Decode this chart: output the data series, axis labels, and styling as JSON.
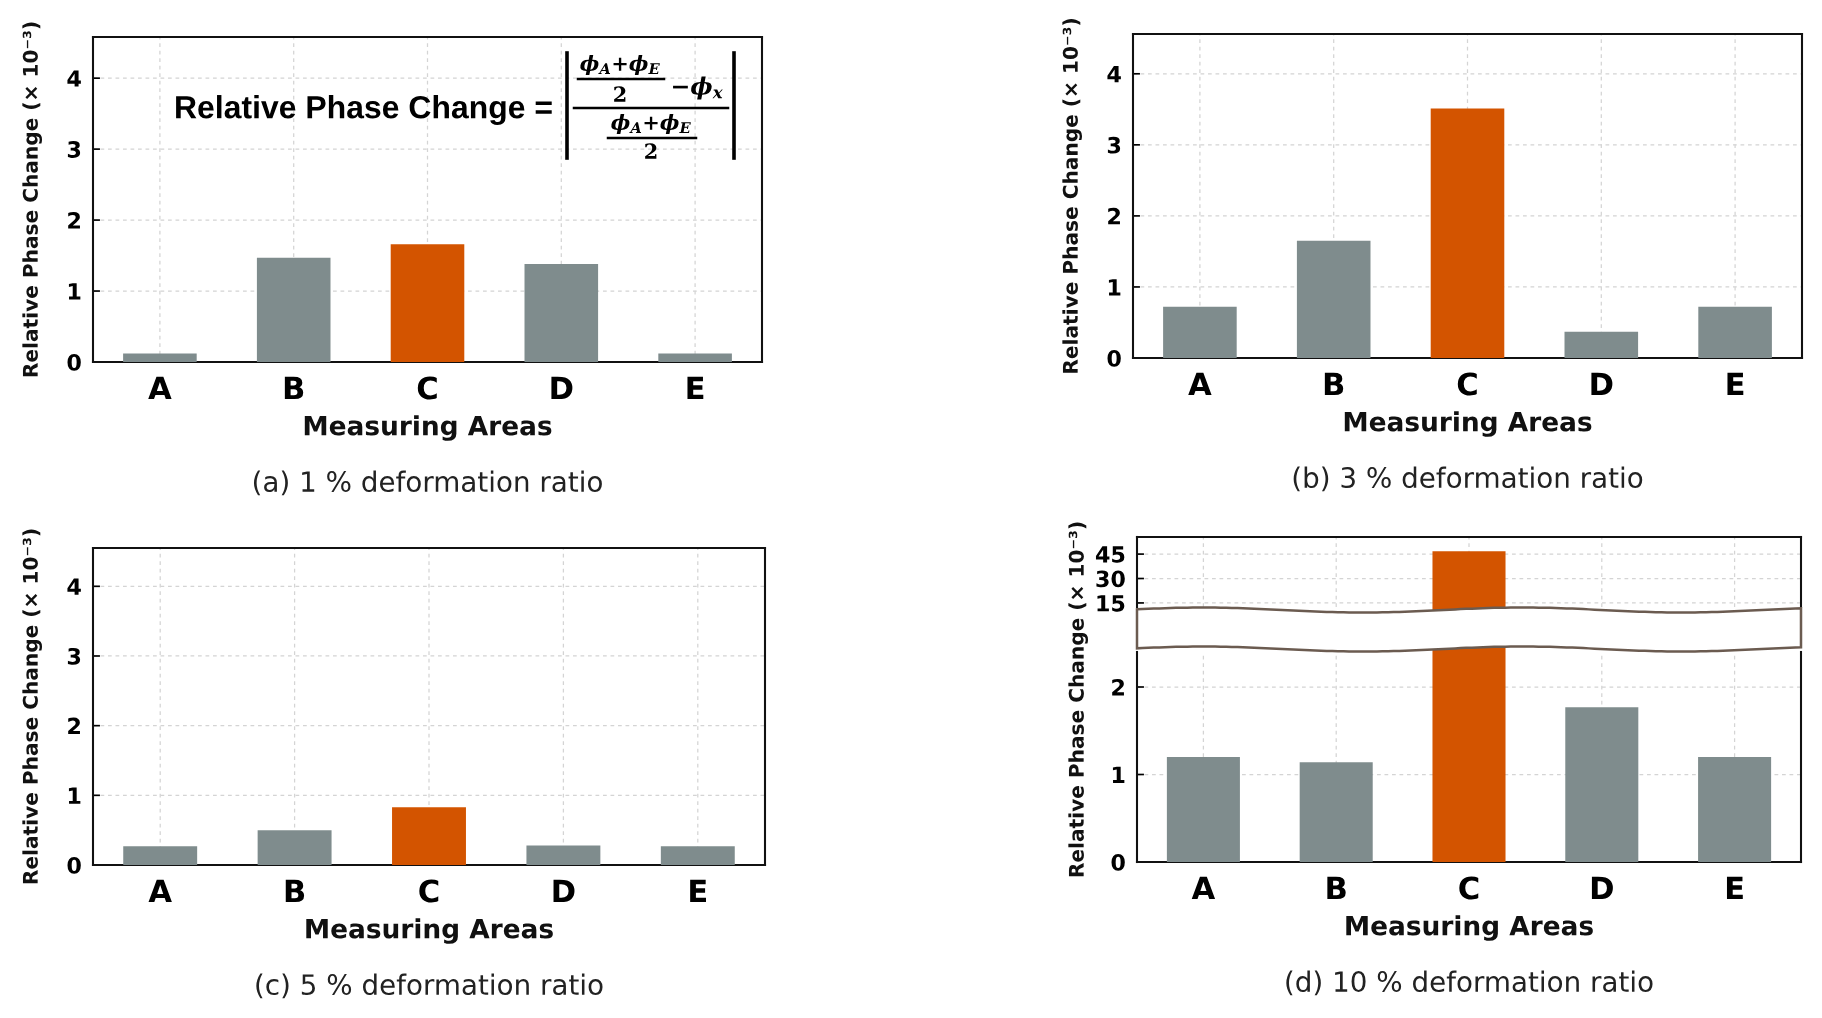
{
  "chart_data": [
    {
      "type": "bar",
      "title": "(a) 1 % deformation ratio",
      "xlabel": "Measuring Areas",
      "ylabel": "Relative Phase Change (× 10⁻³)",
      "categories": [
        "A",
        "B",
        "C",
        "D",
        "E"
      ],
      "values": [
        0.12,
        1.47,
        1.66,
        1.38,
        0.12
      ],
      "colors": [
        "#7f8c8d",
        "#7f8c8d",
        "#d35400",
        "#7f8c8d",
        "#7f8c8d"
      ],
      "ylim": [
        0,
        4.58
      ],
      "yticks": [
        0,
        1,
        2,
        3,
        4
      ],
      "grid": true,
      "annotations": [
        "Relative Phase Change =",
        "ϕ$_{A}$+ϕ$_{E}$",
        "2",
        "−ϕ$_{x}$",
        "ϕ$_{A}$+ϕ$_{E}$",
        "2"
      ]
    },
    {
      "type": "bar",
      "title": "(b) 3 % deformation ratio",
      "xlabel": "Measuring Areas",
      "ylabel": "Relative Phase Change (× 10⁻³)",
      "categories": [
        "A",
        "B",
        "C",
        "D",
        "E"
      ],
      "values": [
        0.72,
        1.65,
        3.51,
        0.37,
        0.72
      ],
      "colors": [
        "#7f8c8d",
        "#7f8c8d",
        "#d35400",
        "#7f8c8d",
        "#7f8c8d"
      ],
      "ylim": [
        0,
        4.56
      ],
      "yticks": [
        0,
        1,
        2,
        3,
        4
      ],
      "grid": true
    },
    {
      "type": "bar",
      "title": "(c) 5 % deformation ratio",
      "xlabel": "Measuring Areas",
      "ylabel": "Relative Phase Change (× 10⁻³)",
      "categories": [
        "A",
        "B",
        "C",
        "D",
        "E"
      ],
      "values": [
        0.27,
        0.5,
        0.83,
        0.28,
        0.27
      ],
      "colors": [
        "#7f8c8d",
        "#7f8c8d",
        "#d35400",
        "#7f8c8d",
        "#7f8c8d"
      ],
      "ylim": [
        0,
        4.55
      ],
      "yticks": [
        0,
        1,
        2,
        3,
        4
      ],
      "grid": true
    },
    {
      "type": "bar",
      "categories": [
        null,
        null,
        null,
        null,
        null
      ],
      "values": [
        null,
        null,
        46.8,
        null,
        null
      ],
      "colors": [
        "#7f8c8d",
        "#7f8c8d",
        "#d35400",
        "#7f8c8d",
        "#7f8c8d"
      ],
      "ylim": [
        12.5,
        55.5
      ],
      "yticks": [
        15,
        30,
        45
      ],
      "grid": true,
      "tick_labels": "y"
    },
    {
      "type": "bar",
      "title": "(d) 10 % deformation ratio",
      "xlabel": "Measuring Areas",
      "ylabel": "Relative Phase Change (× 10⁻³)",
      "categories": [
        "A",
        "B",
        "C",
        "D",
        "E"
      ],
      "values": [
        1.2,
        1.14,
        null,
        1.77,
        1.2
      ],
      "colors": [
        "#7f8c8d",
        "#7f8c8d",
        "#d35400",
        "#7f8c8d",
        "#7f8c8d"
      ],
      "ylim": [
        0,
        2.4
      ],
      "yticks": [
        0,
        1,
        2
      ],
      "grid": true
    }
  ]
}
